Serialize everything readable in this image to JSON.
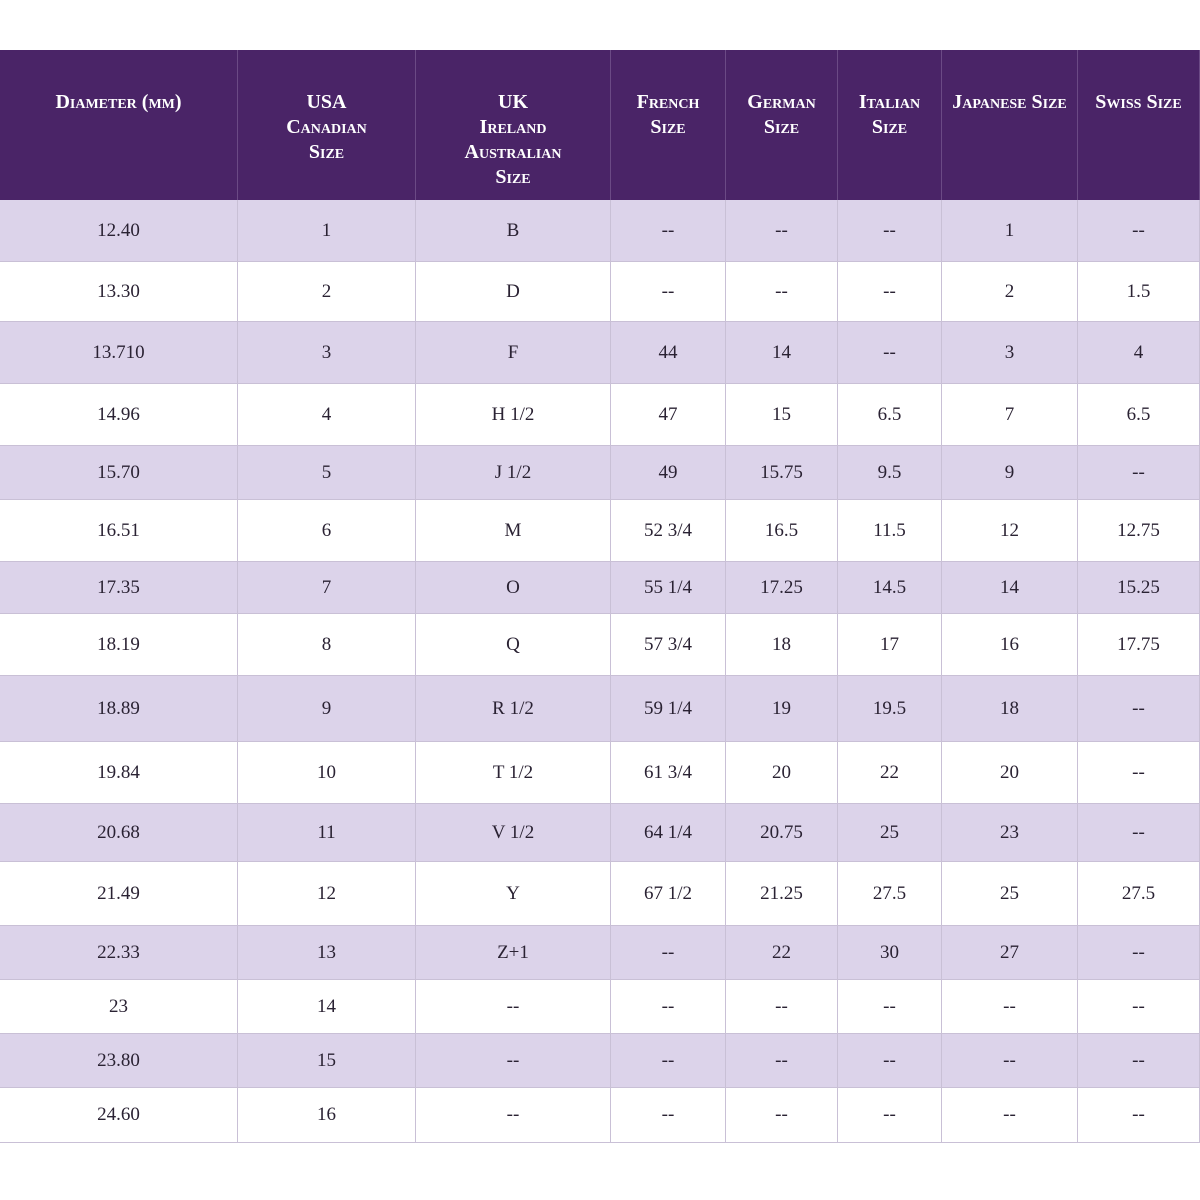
{
  "table": {
    "header": [
      [
        "Diameter (mm)"
      ],
      [
        "USA",
        "Canadian",
        "Size"
      ],
      [
        "UK",
        "Ireland",
        "Australian",
        "Size"
      ],
      [
        "French",
        "Size"
      ],
      [
        "German",
        "Size"
      ],
      [
        "Italian",
        "Size"
      ],
      [
        "Japanese Size"
      ],
      [
        "Swiss Size"
      ]
    ],
    "rows": [
      [
        "12.40",
        "1",
        "B",
        "--",
        "--",
        "--",
        "1",
        "--"
      ],
      [
        "13.30",
        "2",
        "D",
        "--",
        "--",
        "--",
        "2",
        "1.5"
      ],
      [
        "13.710",
        "3",
        "F",
        "44",
        "14",
        "--",
        "3",
        "4"
      ],
      [
        "14.96",
        "4",
        "H 1/2",
        "47",
        "15",
        "6.5",
        "7",
        "6.5"
      ],
      [
        "15.70",
        "5",
        "J 1/2",
        "49",
        "15.75",
        "9.5",
        "9",
        "--"
      ],
      [
        "16.51",
        "6",
        "M",
        "52 3/4",
        "16.5",
        "11.5",
        "12",
        "12.75"
      ],
      [
        "17.35",
        "7",
        "O",
        "55 1/4",
        "17.25",
        "14.5",
        "14",
        "15.25"
      ],
      [
        "18.19",
        "8",
        "Q",
        "57 3/4",
        "18",
        "17",
        "16",
        "17.75"
      ],
      [
        "18.89",
        "9",
        "R 1/2",
        "59 1/4",
        "19",
        "19.5",
        "18",
        "--"
      ],
      [
        "19.84",
        "10",
        "T 1/2",
        "61 3/4",
        "20",
        "22",
        "20",
        "--"
      ],
      [
        "20.68",
        "11",
        "V 1/2",
        "64 1/4",
        "20.75",
        "25",
        "23",
        "--"
      ],
      [
        "21.49",
        "12",
        "Y",
        "67 1/2",
        "21.25",
        "27.5",
        "25",
        "27.5"
      ],
      [
        "22.33",
        "13",
        "Z+1",
        "--",
        "22",
        "30",
        "27",
        "--"
      ],
      [
        "23",
        "14",
        "--",
        "--",
        "--",
        "--",
        "--",
        "--"
      ],
      [
        "23.80",
        "15",
        "--",
        "--",
        "--",
        "--",
        "--",
        "--"
      ],
      [
        "24.60",
        "16",
        "--",
        "--",
        "--",
        "--",
        "--",
        "--"
      ]
    ]
  }
}
